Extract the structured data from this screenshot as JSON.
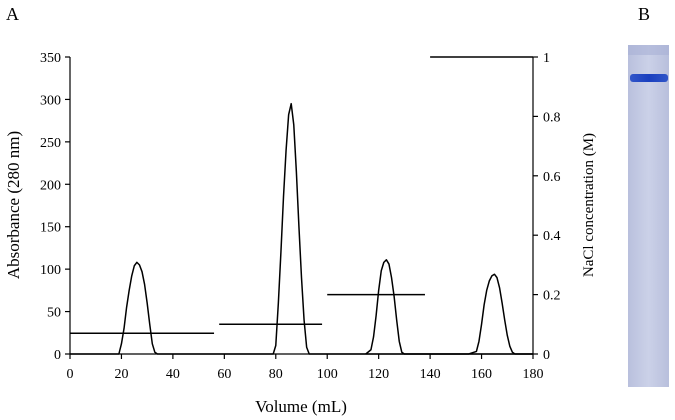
{
  "panel_a_label": "A",
  "panel_b_label": "B",
  "chart_data": {
    "type": "line",
    "title": "",
    "xlabel": "Volume (mL)",
    "ylabel": "Absorbance (280 nm)",
    "y2label": "NaCl concentration (M)",
    "xlim": [
      0,
      180
    ],
    "ylim": [
      0,
      350
    ],
    "y2lim": [
      0,
      1
    ],
    "xticks": [
      0,
      20,
      40,
      60,
      80,
      100,
      120,
      140,
      160,
      180
    ],
    "yticks": [
      0,
      50,
      100,
      150,
      200,
      250,
      300,
      350
    ],
    "y2ticks": [
      0,
      0.2,
      0.4,
      0.6,
      0.8,
      1
    ],
    "grid": false,
    "series": [
      {
        "axis": "left",
        "x": [
          0,
          19,
          20,
          21,
          22,
          23,
          24,
          25,
          26,
          27,
          28,
          29,
          30,
          31,
          32,
          33,
          34,
          35,
          36,
          37,
          38,
          39,
          40,
          41,
          42,
          43,
          44,
          45,
          46,
          47,
          48,
          49,
          50,
          51,
          52,
          53,
          54,
          55,
          56,
          57,
          58,
          59,
          60,
          61,
          62,
          63,
          64,
          65,
          66,
          67,
          68,
          69,
          70,
          71,
          72,
          73,
          74,
          75,
          76,
          77,
          78,
          79,
          80,
          81,
          82,
          83,
          84,
          85,
          86,
          87,
          88,
          89,
          90,
          91,
          92,
          93,
          94,
          95,
          96,
          97,
          98,
          99,
          100,
          101,
          102,
          103,
          104,
          105,
          106,
          107,
          108,
          109,
          110,
          111,
          112,
          113,
          114,
          115,
          116,
          117,
          118,
          119,
          120,
          121,
          122,
          123,
          124,
          125,
          126,
          127,
          128,
          129,
          130,
          131,
          132,
          133,
          134,
          135,
          136,
          137,
          138,
          139,
          140,
          141,
          142,
          143,
          144,
          145,
          146,
          147,
          148,
          149,
          150,
          151,
          152,
          153,
          154,
          155,
          156,
          157,
          158,
          159,
          160,
          161,
          162,
          163,
          164,
          165,
          166,
          167,
          168,
          169,
          170,
          171,
          172,
          173,
          174,
          175,
          176,
          177,
          178,
          179,
          180
        ],
        "y": [
          0,
          0,
          12,
          30,
          55,
          75,
          92,
          104,
          108,
          105,
          97,
          82,
          60,
          35,
          12,
          2,
          0,
          0,
          0,
          0,
          0,
          0,
          0,
          0,
          0,
          0,
          0,
          0,
          0,
          0,
          0,
          0,
          0,
          0,
          0,
          0,
          0,
          0,
          0,
          0,
          0,
          0,
          0,
          0,
          0,
          0,
          0,
          0,
          0,
          0,
          0,
          0,
          0,
          0,
          0,
          0,
          0,
          0,
          0,
          0,
          0,
          0,
          10,
          60,
          120,
          185,
          240,
          282,
          295,
          270,
          215,
          150,
          90,
          40,
          8,
          0,
          0,
          0,
          0,
          0,
          0,
          0,
          0,
          0,
          0,
          0,
          0,
          0,
          0,
          0,
          0,
          0,
          0,
          0,
          0,
          0,
          0,
          0,
          0,
          0,
          0,
          0,
          0,
          0,
          0,
          0,
          0,
          0,
          0,
          0,
          0,
          0,
          0,
          0,
          0,
          0,
          0,
          0,
          0,
          0,
          0,
          0,
          0,
          0,
          0,
          0,
          0,
          0,
          0,
          0,
          0,
          0,
          0,
          0,
          0,
          0,
          0,
          0,
          0,
          0,
          0,
          0,
          0,
          0,
          0,
          0,
          0,
          0,
          0,
          0,
          0,
          0,
          0,
          0,
          0,
          0,
          0,
          0,
          0,
          0,
          0,
          0,
          0
        ]
      },
      {
        "axis": "left",
        "x": [
          115,
          117,
          118,
          119,
          120,
          121,
          122,
          123,
          124,
          125,
          126,
          127,
          128,
          129,
          130,
          155,
          158,
          159,
          160,
          161,
          162,
          163,
          164,
          165,
          166,
          167,
          168,
          169,
          170,
          171,
          172,
          173,
          174,
          180
        ],
        "y": [
          0,
          5,
          20,
          45,
          75,
          98,
          108,
          111,
          106,
          90,
          68,
          40,
          15,
          2,
          0,
          0,
          3,
          15,
          35,
          58,
          75,
          86,
          92,
          94,
          90,
          78,
          60,
          40,
          22,
          9,
          2,
          0,
          0,
          0
        ]
      },
      {
        "axis": "right",
        "name": "",
        "segments": [
          {
            "x": [
              0,
              56
            ],
            "y": 0.07
          },
          {
            "x": [
              58,
              98
            ],
            "y": 0.1
          },
          {
            "x": [
              100,
              138
            ],
            "y": 0.2
          },
          {
            "x": [
              140,
              180
            ],
            "y": 1.0
          }
        ]
      }
    ]
  }
}
